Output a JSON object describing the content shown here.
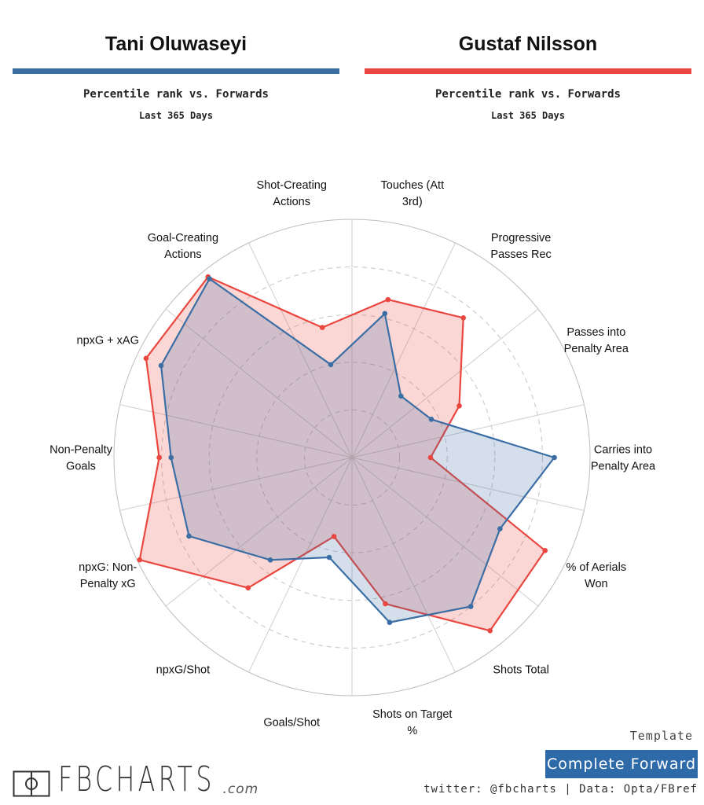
{
  "header": {
    "left": {
      "name": "Tani Oluwaseyi",
      "subtitle": "Percentile rank vs. Forwards",
      "period": "Last 365 Days",
      "color": "#3b6ea5"
    },
    "right": {
      "name": "Gustaf Nilsson",
      "subtitle": "Percentile rank vs. Forwards",
      "period": "Last 365 Days",
      "color": "#e9473f"
    }
  },
  "chart_data": {
    "type": "radar",
    "range": [
      0,
      100
    ],
    "grid": true,
    "categories": [
      "Carries into Penalty Area",
      "Passes into Penalty Area",
      "Progressive Passes Rec",
      "Touches (Att 3rd)",
      "Shot-Creating Actions",
      "Goal-Creating Actions",
      "npxG + xAG",
      "Non-Penalty Goals",
      "npxG: Non-Penalty xG",
      "npxG/Shot",
      "Goals/Shot",
      "Shots on Target %",
      "Shots Total",
      "% of Aerials Won"
    ],
    "series": [
      {
        "name": "Tani Oluwaseyi",
        "color": "#3b6ea5",
        "values": [
          85,
          37,
          33,
          62,
          40,
          96,
          89,
          76,
          76,
          55,
          43,
          71,
          80,
          69
        ]
      },
      {
        "name": "Gustaf Nilsson",
        "color": "#e9473f",
        "values": [
          33,
          50,
          75,
          68,
          56,
          97,
          96,
          81,
          99,
          70,
          34,
          63,
          93,
          90
        ]
      }
    ]
  },
  "axis_labels": [
    [
      "Carries into",
      "Penalty Area"
    ],
    [
      "Passes into",
      "Penalty Area"
    ],
    [
      "Progressive",
      "Passes Rec"
    ],
    [
      "Touches (Att",
      "3rd)"
    ],
    [
      "Shot-Creating",
      "Actions"
    ],
    [
      "Goal-Creating",
      "Actions"
    ],
    [
      "npxG + xAG"
    ],
    [
      "Non-Penalty",
      "Goals"
    ],
    [
      "npxG: Non-",
      "Penalty xG"
    ],
    [
      "npxG/Shot"
    ],
    [
      "Goals/Shot"
    ],
    [
      "Shots on Target",
      "%"
    ],
    [
      "Shots Total"
    ],
    [
      "% of Aerials",
      "Won"
    ]
  ],
  "footer": {
    "template_label": "Template",
    "template_name": "Complete Forward",
    "credits": "twitter: @fbcharts | Data: Opta/FBref",
    "logo_text": "FBCHARTS",
    "logo_domain": ".com",
    "box_color": "#2f6aa8"
  }
}
